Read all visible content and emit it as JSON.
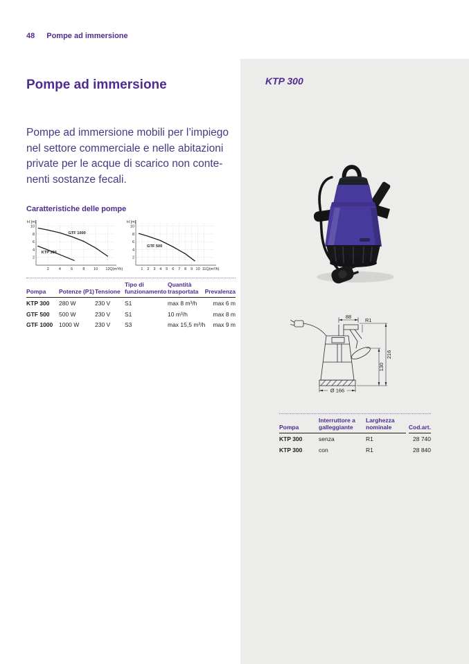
{
  "header": {
    "page_number": "48",
    "title": "Pompe ad immersione"
  },
  "main": {
    "title": "Pompe ad immersione",
    "intro_lines": [
      "Pompe ad immersione mobili per l’impiego",
      "nel settore commerciale e nelle abitazioni",
      "private per le acque di scarico non conte-",
      "nenti sostanze fecali."
    ],
    "charts_heading": "Caratteristiche delle pompe"
  },
  "chart_data": [
    {
      "type": "line",
      "title": "",
      "ylabel": "H [m]",
      "xunit": "Q(m³/h)",
      "yticks": [
        2,
        4,
        6,
        8,
        10
      ],
      "xticks": [
        2,
        4,
        6,
        8,
        10,
        12
      ],
      "ylim": [
        0,
        11
      ],
      "xlim": [
        0,
        13
      ],
      "grid": true,
      "series": [
        {
          "name": "GTF 1000",
          "label_at": [
            5.4,
            8.0
          ],
          "points": [
            [
              0.4,
              9.5
            ],
            [
              2,
              9.0
            ],
            [
              4,
              8.3
            ],
            [
              6,
              7.3
            ],
            [
              8,
              6.1
            ],
            [
              10,
              4.4
            ],
            [
              12,
              2.3
            ]
          ]
        },
        {
          "name": "KTP 300",
          "label_at": [
            0.9,
            3.0
          ],
          "points": [
            [
              0.3,
              4.9
            ],
            [
              2,
              3.9
            ],
            [
              4,
              2.7
            ],
            [
              6.4,
              1.2
            ]
          ]
        }
      ]
    },
    {
      "type": "line",
      "title": "",
      "ylabel": "H [m]",
      "xunit": "Q(m³/h)",
      "yticks": [
        2,
        4,
        6,
        8,
        10
      ],
      "xticks": [
        1,
        2,
        3,
        4,
        5,
        6,
        7,
        8,
        9,
        10,
        11
      ],
      "ylim": [
        0,
        11
      ],
      "xlim": [
        0,
        12.5
      ],
      "grid": true,
      "series": [
        {
          "name": "GTF 500",
          "label_at": [
            1.8,
            4.6
          ],
          "points": [
            [
              0.5,
              8.1
            ],
            [
              2,
              7.4
            ],
            [
              4,
              6.3
            ],
            [
              6,
              4.7
            ],
            [
              8,
              2.9
            ],
            [
              9.5,
              1.1
            ]
          ]
        }
      ]
    }
  ],
  "specs_table": {
    "headers": [
      "Pompa",
      "Potenze (P1)",
      "Tensione",
      "Tipo di\nfunzionamento",
      "Quantità\ntrasportata",
      "Prevalenza"
    ],
    "rows": [
      [
        "KTP 300",
        "280 W",
        "230 V",
        "S1",
        "max 8 m³/h",
        "max 6 m"
      ],
      [
        "GTF 500",
        "500 W",
        "230 V",
        "S1",
        "10 m³/h",
        "max 8 m"
      ],
      [
        "GTF 1000",
        "1000 W",
        "230 V",
        "S3",
        "max 15,5 m³/h",
        "max 9 m"
      ]
    ]
  },
  "product_panel": {
    "model": "KTP 300",
    "dimensions": {
      "width": "88",
      "thread": "R1",
      "height_total": "216",
      "height_partial": "130",
      "diameter": "Ø 166"
    },
    "order_table": {
      "headers": [
        "Pompa",
        "Interruttore a\ngalleggiante",
        "Larghezza\nnominale",
        "Cod.art."
      ],
      "rows": [
        [
          "KTP 300",
          "senza",
          "R1",
          "28 740"
        ],
        [
          "KTP 300",
          "con",
          "R1",
          "28 840"
        ]
      ]
    }
  },
  "colors": {
    "accent_purple": "#4f2b8e",
    "body_text_purple": "#473882",
    "panel_gray": "#ececeb",
    "pump_purple": "#483a9c",
    "table_text": "#1d1d1b"
  }
}
